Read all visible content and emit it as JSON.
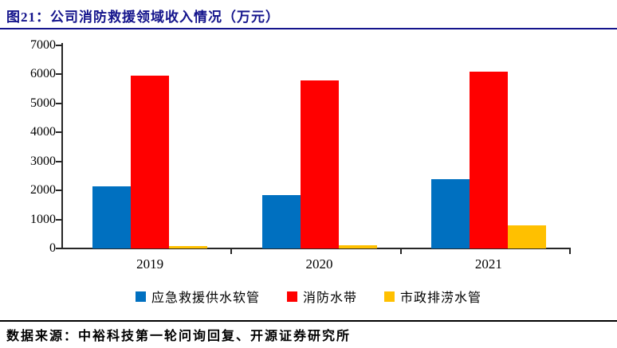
{
  "header": {
    "title": "图21：公司消防救援领域收入情况（万元）"
  },
  "chart_data": {
    "type": "bar",
    "title": "公司消防救援领域收入情况（万元）",
    "categories": [
      "2019",
      "2020",
      "2021"
    ],
    "series": [
      {
        "name": "应急救援供水软管",
        "color": "#0070C0",
        "values": [
          2150,
          1850,
          2400
        ]
      },
      {
        "name": "消防水带",
        "color": "#FF0000",
        "values": [
          5950,
          5800,
          6100
        ]
      },
      {
        "name": "市政排涝水管",
        "color": "#FFC000",
        "values": [
          70,
          110,
          800
        ]
      }
    ],
    "xlabel": "",
    "ylabel": "",
    "ylim": [
      0,
      7000
    ],
    "yticks": [
      0,
      1000,
      2000,
      3000,
      4000,
      5000,
      6000,
      7000
    ],
    "grid": false,
    "legend_position": "bottom"
  },
  "footer": {
    "source": "数据来源：中裕科技第一轮问询回复、开源证券研究所"
  },
  "colors": {
    "title": "#14148C",
    "title_rule": "#14148C",
    "axis": "#262626",
    "bar_blue": "#0070C0",
    "bar_red": "#FF0000",
    "bar_yellow": "#FFC000"
  }
}
